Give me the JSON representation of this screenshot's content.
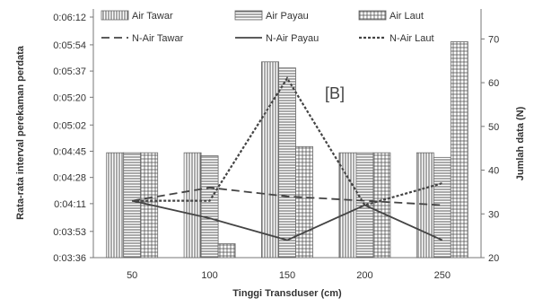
{
  "chart_data": {
    "type": "bar",
    "panel_label": "[B]",
    "xlabel": "Tinggi Transduser (cm)",
    "ylabel_left": "Rata-rata interval perekaman perdata",
    "ylabel_right": "Jumlah data (N)",
    "categories": [
      "50",
      "100",
      "150",
      "200",
      "250"
    ],
    "y_left_ticks": [
      "0:03:36",
      "0:03:53",
      "0:04:11",
      "0:04:28",
      "0:04:45",
      "0:05:02",
      "0:05:20",
      "0:05:37",
      "0:05:54",
      "0:06:12"
    ],
    "y_left_range": [
      "0:03:36",
      "0:06:12"
    ],
    "y_right_ticks": [
      "20",
      "30",
      "40",
      "50",
      "60",
      "70"
    ],
    "y_right_range": [
      20,
      75
    ],
    "bar_series": [
      {
        "name": "Air Tawar",
        "pattern": "vertical-lines",
        "values": [
          "0:04:44",
          "0:04:44",
          "0:05:43",
          "0:04:44",
          "0:04:44"
        ]
      },
      {
        "name": "Air Payau",
        "pattern": "horizontal-lines",
        "values": [
          "0:04:44",
          "0:04:42",
          "0:05:39",
          "0:04:44",
          "0:04:41"
        ]
      },
      {
        "name": "Air Laut",
        "pattern": "grid",
        "values": [
          "0:04:44",
          "0:03:45",
          "0:04:48",
          "0:04:44",
          "0:05:56"
        ]
      }
    ],
    "line_series": [
      {
        "name": "N-Air Tawar",
        "style": "dashed",
        "values": [
          33,
          36,
          34,
          33,
          32
        ]
      },
      {
        "name": "N-Air Payau",
        "style": "solid",
        "values": [
          33,
          29,
          24,
          32,
          24
        ]
      },
      {
        "name": "N-Air Laut",
        "style": "dotted",
        "values": [
          33,
          33,
          61,
          32,
          37
        ]
      }
    ],
    "legend_position": "top",
    "grid": false
  }
}
